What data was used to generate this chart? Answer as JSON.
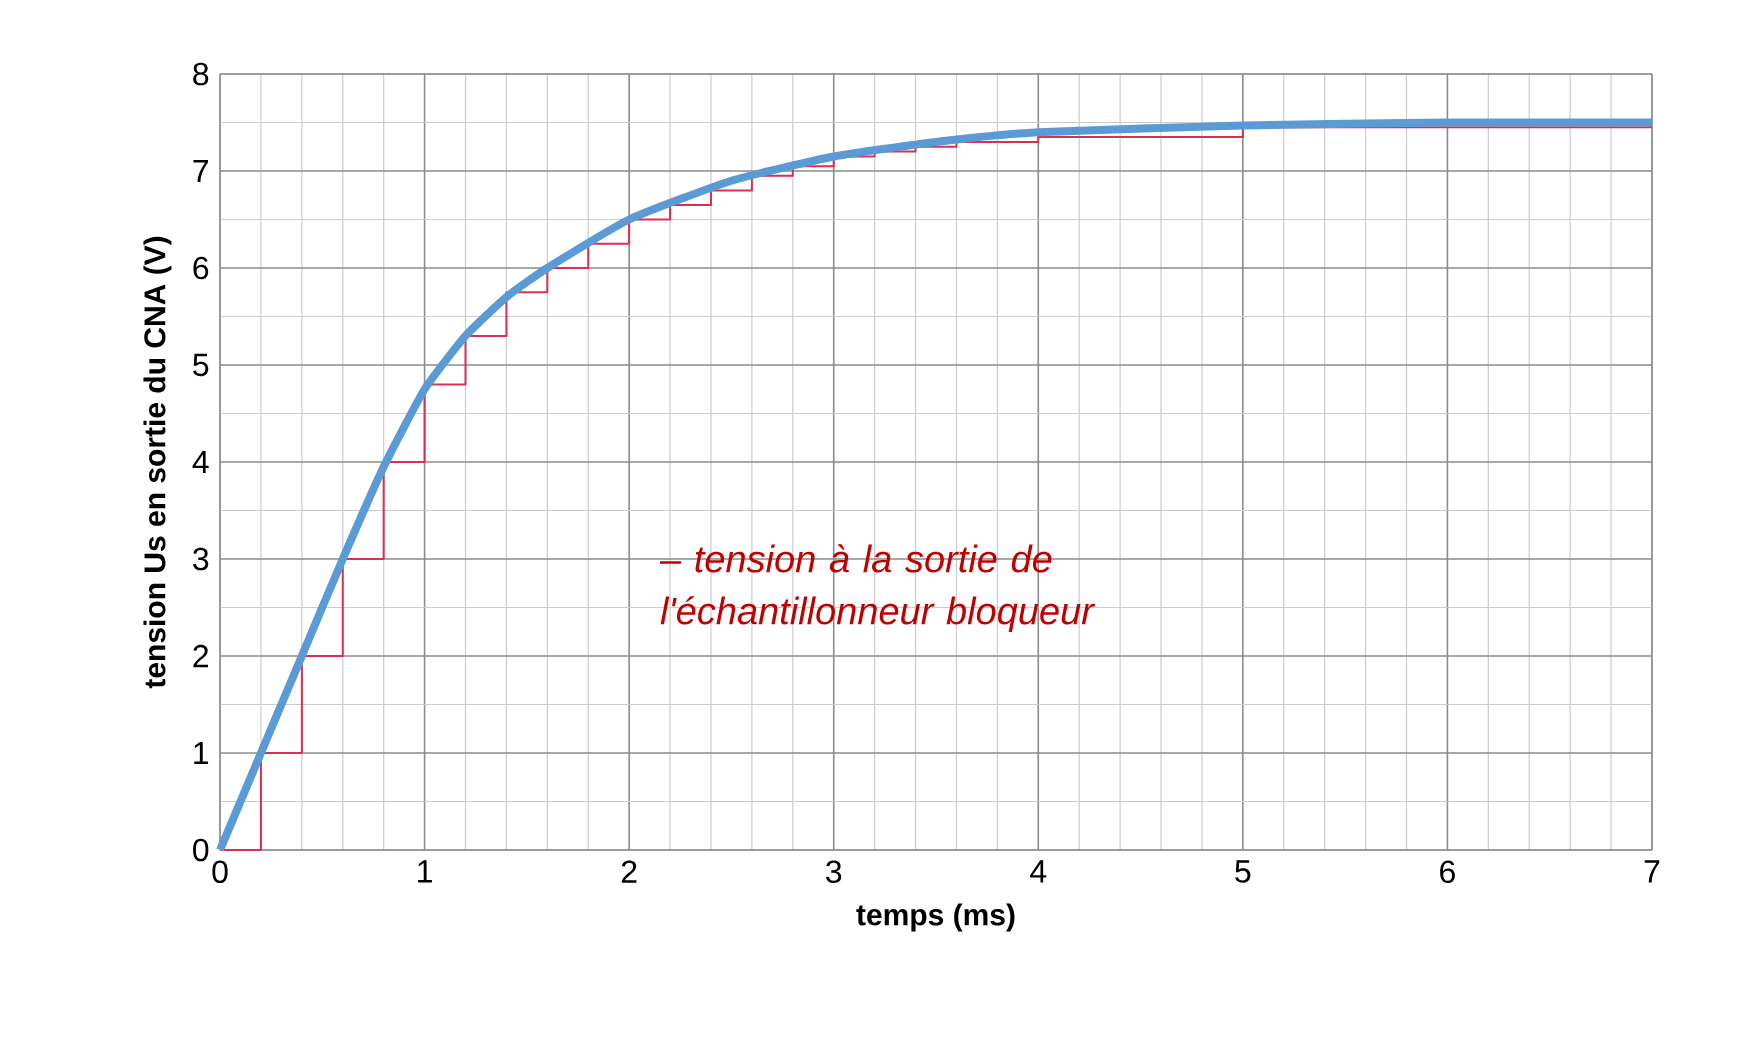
{
  "chart_data": {
    "type": "line",
    "xlabel": "temps (ms)",
    "ylabel": "tension Us en sortie du CNA (V)",
    "xlim": [
      0,
      7
    ],
    "ylim": [
      0,
      8
    ],
    "xticks": [
      0,
      1,
      2,
      3,
      4,
      5,
      6,
      7
    ],
    "yticks": [
      0,
      1,
      2,
      3,
      4,
      5,
      6,
      7,
      8
    ],
    "grid": true,
    "marker": "none",
    "line_style": "solid",
    "annotations": [
      "– tension à la sortie de l'échantillonneur bloqueur"
    ],
    "series": [
      {
        "type": "step",
        "color": "#d9304f",
        "x": [
          0,
          0.2,
          0.4,
          0.6,
          0.8,
          1.0,
          1.2,
          1.4,
          1.6,
          1.8,
          2.0,
          2.2,
          2.4,
          2.6,
          2.8,
          3.0,
          3.2,
          3.4,
          3.6,
          4.0,
          5.0,
          7.0
        ],
        "values": [
          0,
          1.0,
          2.0,
          3.0,
          4.0,
          4.8,
          5.3,
          5.75,
          6.0,
          6.25,
          6.5,
          6.65,
          6.8,
          6.95,
          7.05,
          7.15,
          7.2,
          7.25,
          7.3,
          7.35,
          7.45,
          7.45
        ]
      },
      {
        "color": "#5b9bd5",
        "x": [
          0,
          0.2,
          0.4,
          0.6,
          0.8,
          1.0,
          1.2,
          1.4,
          1.6,
          2.0,
          2.5,
          3.0,
          3.5,
          4.0,
          5.0,
          6.0,
          7.0
        ],
        "values": [
          0,
          1.0,
          2.0,
          3.0,
          3.95,
          4.75,
          5.3,
          5.7,
          6.0,
          6.5,
          6.9,
          7.15,
          7.3,
          7.4,
          7.47,
          7.5,
          7.5
        ]
      }
    ]
  }
}
